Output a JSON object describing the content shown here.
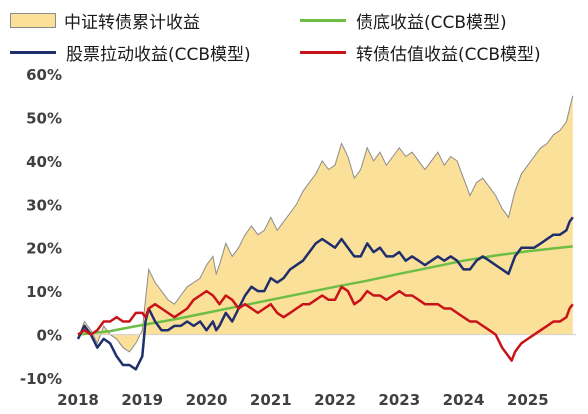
{
  "chart_data": {
    "type": "area",
    "legend_position": "top",
    "grid": false,
    "x_ticks": [
      "2018",
      "2019",
      "2020",
      "2021",
      "2022",
      "2023",
      "2024",
      "2025"
    ],
    "y_ticks": [
      "60%",
      "50%",
      "40%",
      "30%",
      "20%",
      "10%",
      "0%",
      "-10%"
    ],
    "ylim": [
      -10,
      60
    ],
    "xlim": [
      2018.0,
      2025.75
    ],
    "series": [
      {
        "name": "中证转债累计收益",
        "kind": "area",
        "color": "#FBE09A",
        "outline": "#8c8c8c",
        "points": [
          [
            2018.0,
            -1
          ],
          [
            2018.1,
            3
          ],
          [
            2018.2,
            1
          ],
          [
            2018.3,
            -2
          ],
          [
            2018.4,
            2
          ],
          [
            2018.5,
            0
          ],
          [
            2018.6,
            -1
          ],
          [
            2018.7,
            -3
          ],
          [
            2018.8,
            -4
          ],
          [
            2018.9,
            -2
          ],
          [
            2019.0,
            1
          ],
          [
            2019.05,
            8
          ],
          [
            2019.1,
            15
          ],
          [
            2019.2,
            12
          ],
          [
            2019.3,
            10
          ],
          [
            2019.4,
            8
          ],
          [
            2019.5,
            7
          ],
          [
            2019.6,
            9
          ],
          [
            2019.7,
            11
          ],
          [
            2019.8,
            12
          ],
          [
            2019.9,
            13
          ],
          [
            2020.0,
            16
          ],
          [
            2020.1,
            18
          ],
          [
            2020.15,
            14
          ],
          [
            2020.2,
            16
          ],
          [
            2020.3,
            21
          ],
          [
            2020.4,
            18
          ],
          [
            2020.5,
            20
          ],
          [
            2020.6,
            23
          ],
          [
            2020.7,
            25
          ],
          [
            2020.8,
            23
          ],
          [
            2020.9,
            24
          ],
          [
            2021.0,
            27
          ],
          [
            2021.1,
            24
          ],
          [
            2021.2,
            26
          ],
          [
            2021.3,
            28
          ],
          [
            2021.4,
            30
          ],
          [
            2021.5,
            33
          ],
          [
            2021.6,
            35
          ],
          [
            2021.7,
            37
          ],
          [
            2021.8,
            40
          ],
          [
            2021.9,
            38
          ],
          [
            2022.0,
            39
          ],
          [
            2022.1,
            44
          ],
          [
            2022.2,
            41
          ],
          [
            2022.3,
            36
          ],
          [
            2022.4,
            38
          ],
          [
            2022.5,
            43
          ],
          [
            2022.6,
            40
          ],
          [
            2022.7,
            42
          ],
          [
            2022.8,
            39
          ],
          [
            2022.9,
            41
          ],
          [
            2023.0,
            43
          ],
          [
            2023.1,
            41
          ],
          [
            2023.2,
            42
          ],
          [
            2023.3,
            40
          ],
          [
            2023.4,
            38
          ],
          [
            2023.5,
            40
          ],
          [
            2023.6,
            42
          ],
          [
            2023.7,
            39
          ],
          [
            2023.8,
            41
          ],
          [
            2023.9,
            40
          ],
          [
            2024.0,
            36
          ],
          [
            2024.1,
            32
          ],
          [
            2024.2,
            35
          ],
          [
            2024.3,
            36
          ],
          [
            2024.4,
            34
          ],
          [
            2024.5,
            32
          ],
          [
            2024.6,
            29
          ],
          [
            2024.7,
            27
          ],
          [
            2024.8,
            33
          ],
          [
            2024.9,
            37
          ],
          [
            2025.0,
            39
          ],
          [
            2025.1,
            41
          ],
          [
            2025.2,
            43
          ],
          [
            2025.3,
            44
          ],
          [
            2025.4,
            46
          ],
          [
            2025.5,
            47
          ],
          [
            2025.6,
            49
          ],
          [
            2025.65,
            52
          ],
          [
            2025.7,
            55
          ]
        ]
      },
      {
        "name": "债底收益(CCB模型)",
        "kind": "line",
        "color": "#6DBE45",
        "points": [
          [
            2018.0,
            0
          ],
          [
            2018.5,
            0.8
          ],
          [
            2019.0,
            2.2
          ],
          [
            2019.5,
            3.5
          ],
          [
            2020.0,
            5
          ],
          [
            2020.5,
            6.5
          ],
          [
            2021.0,
            8
          ],
          [
            2021.5,
            9.5
          ],
          [
            2022.0,
            11
          ],
          [
            2022.5,
            12.4
          ],
          [
            2023.0,
            14
          ],
          [
            2023.5,
            15.5
          ],
          [
            2024.0,
            17
          ],
          [
            2024.5,
            18.2
          ],
          [
            2025.0,
            19.2
          ],
          [
            2025.5,
            20
          ],
          [
            2025.7,
            20.3
          ]
        ]
      },
      {
        "name": "股票拉动收益(CCB模型)",
        "kind": "line",
        "color": "#1F2F6B",
        "points": [
          [
            2018.0,
            -1
          ],
          [
            2018.1,
            2
          ],
          [
            2018.2,
            0
          ],
          [
            2018.3,
            -3
          ],
          [
            2018.4,
            -1
          ],
          [
            2018.5,
            -2
          ],
          [
            2018.6,
            -5
          ],
          [
            2018.7,
            -7
          ],
          [
            2018.8,
            -7
          ],
          [
            2018.9,
            -8
          ],
          [
            2019.0,
            -5
          ],
          [
            2019.05,
            3
          ],
          [
            2019.1,
            6
          ],
          [
            2019.2,
            3
          ],
          [
            2019.3,
            1
          ],
          [
            2019.4,
            1
          ],
          [
            2019.5,
            2
          ],
          [
            2019.6,
            2
          ],
          [
            2019.7,
            3
          ],
          [
            2019.8,
            2
          ],
          [
            2019.9,
            3
          ],
          [
            2020.0,
            1
          ],
          [
            2020.1,
            3
          ],
          [
            2020.15,
            1
          ],
          [
            2020.2,
            2
          ],
          [
            2020.3,
            5
          ],
          [
            2020.4,
            3
          ],
          [
            2020.5,
            6
          ],
          [
            2020.6,
            9
          ],
          [
            2020.7,
            11
          ],
          [
            2020.8,
            10
          ],
          [
            2020.9,
            10
          ],
          [
            2021.0,
            13
          ],
          [
            2021.1,
            12
          ],
          [
            2021.2,
            13
          ],
          [
            2021.3,
            15
          ],
          [
            2021.4,
            16
          ],
          [
            2021.5,
            17
          ],
          [
            2021.6,
            19
          ],
          [
            2021.7,
            21
          ],
          [
            2021.8,
            22
          ],
          [
            2021.9,
            21
          ],
          [
            2022.0,
            20
          ],
          [
            2022.1,
            22
          ],
          [
            2022.2,
            20
          ],
          [
            2022.3,
            18
          ],
          [
            2022.4,
            18
          ],
          [
            2022.5,
            21
          ],
          [
            2022.6,
            19
          ],
          [
            2022.7,
            20
          ],
          [
            2022.8,
            18
          ],
          [
            2022.9,
            18
          ],
          [
            2023.0,
            19
          ],
          [
            2023.1,
            17
          ],
          [
            2023.2,
            18
          ],
          [
            2023.3,
            17
          ],
          [
            2023.4,
            16
          ],
          [
            2023.5,
            17
          ],
          [
            2023.6,
            18
          ],
          [
            2023.7,
            17
          ],
          [
            2023.8,
            18
          ],
          [
            2023.9,
            17
          ],
          [
            2024.0,
            15
          ],
          [
            2024.1,
            15
          ],
          [
            2024.2,
            17
          ],
          [
            2024.3,
            18
          ],
          [
            2024.4,
            17
          ],
          [
            2024.5,
            16
          ],
          [
            2024.6,
            15
          ],
          [
            2024.7,
            14
          ],
          [
            2024.8,
            18
          ],
          [
            2024.9,
            20
          ],
          [
            2025.0,
            20
          ],
          [
            2025.1,
            20
          ],
          [
            2025.2,
            21
          ],
          [
            2025.3,
            22
          ],
          [
            2025.4,
            23
          ],
          [
            2025.5,
            23
          ],
          [
            2025.6,
            24
          ],
          [
            2025.65,
            26
          ],
          [
            2025.7,
            27
          ]
        ]
      },
      {
        "name": "转债估值收益(CCB模型)",
        "kind": "line",
        "color": "#C81418",
        "points": [
          [
            2018.0,
            0
          ],
          [
            2018.1,
            1
          ],
          [
            2018.2,
            0
          ],
          [
            2018.3,
            1
          ],
          [
            2018.4,
            3
          ],
          [
            2018.5,
            3
          ],
          [
            2018.6,
            4
          ],
          [
            2018.7,
            3
          ],
          [
            2018.8,
            3
          ],
          [
            2018.9,
            5
          ],
          [
            2019.0,
            5
          ],
          [
            2019.05,
            4
          ],
          [
            2019.1,
            6
          ],
          [
            2019.2,
            7
          ],
          [
            2019.3,
            6
          ],
          [
            2019.4,
            5
          ],
          [
            2019.5,
            4
          ],
          [
            2019.6,
            5
          ],
          [
            2019.7,
            6
          ],
          [
            2019.8,
            8
          ],
          [
            2019.9,
            9
          ],
          [
            2020.0,
            10
          ],
          [
            2020.1,
            9
          ],
          [
            2020.15,
            8
          ],
          [
            2020.2,
            7
          ],
          [
            2020.3,
            9
          ],
          [
            2020.4,
            8
          ],
          [
            2020.5,
            6
          ],
          [
            2020.6,
            7
          ],
          [
            2020.7,
            6
          ],
          [
            2020.8,
            5
          ],
          [
            2020.9,
            6
          ],
          [
            2021.0,
            7
          ],
          [
            2021.1,
            5
          ],
          [
            2021.2,
            4
          ],
          [
            2021.3,
            5
          ],
          [
            2021.4,
            6
          ],
          [
            2021.5,
            7
          ],
          [
            2021.6,
            7
          ],
          [
            2021.7,
            8
          ],
          [
            2021.8,
            9
          ],
          [
            2021.9,
            8
          ],
          [
            2022.0,
            8
          ],
          [
            2022.1,
            11
          ],
          [
            2022.2,
            10
          ],
          [
            2022.3,
            7
          ],
          [
            2022.4,
            8
          ],
          [
            2022.5,
            10
          ],
          [
            2022.6,
            9
          ],
          [
            2022.7,
            9
          ],
          [
            2022.8,
            8
          ],
          [
            2022.9,
            9
          ],
          [
            2023.0,
            10
          ],
          [
            2023.1,
            9
          ],
          [
            2023.2,
            9
          ],
          [
            2023.3,
            8
          ],
          [
            2023.4,
            7
          ],
          [
            2023.5,
            7
          ],
          [
            2023.6,
            7
          ],
          [
            2023.7,
            6
          ],
          [
            2023.8,
            6
          ],
          [
            2023.9,
            5
          ],
          [
            2024.0,
            4
          ],
          [
            2024.1,
            3
          ],
          [
            2024.2,
            3
          ],
          [
            2024.3,
            2
          ],
          [
            2024.4,
            1
          ],
          [
            2024.5,
            0
          ],
          [
            2024.6,
            -3
          ],
          [
            2024.7,
            -5
          ],
          [
            2024.75,
            -6
          ],
          [
            2024.8,
            -4
          ],
          [
            2024.9,
            -2
          ],
          [
            2025.0,
            -1
          ],
          [
            2025.1,
            0
          ],
          [
            2025.2,
            1
          ],
          [
            2025.3,
            2
          ],
          [
            2025.4,
            3
          ],
          [
            2025.5,
            3
          ],
          [
            2025.6,
            4
          ],
          [
            2025.65,
            6
          ],
          [
            2025.7,
            7
          ]
        ]
      }
    ]
  }
}
